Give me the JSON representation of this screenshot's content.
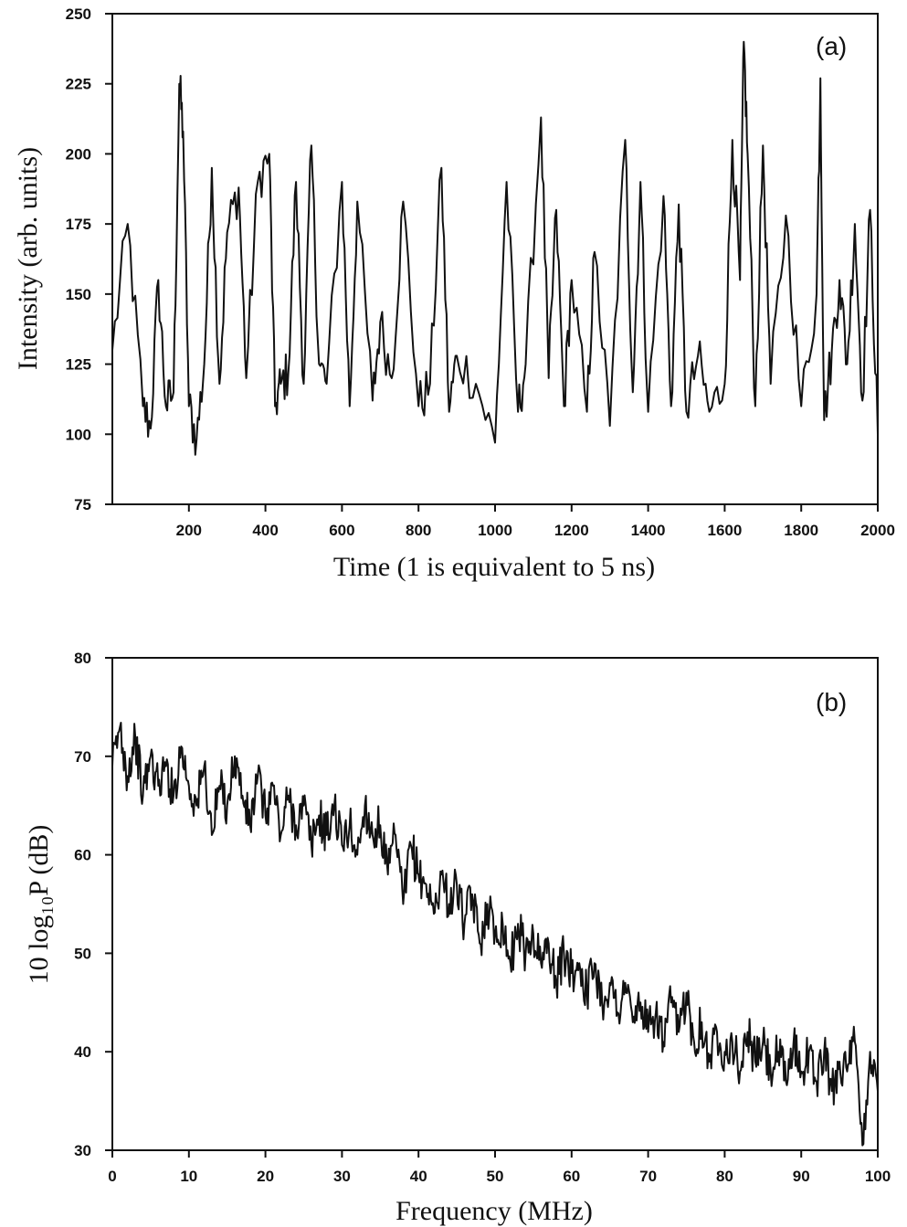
{
  "chart_data": [
    {
      "type": "line",
      "panel_label": "(a)",
      "title": "",
      "xlabel": "Time (1 is equivalent to 5 ns)",
      "ylabel": "Intensity (arb. units)",
      "xlim": [
        0,
        2000
      ],
      "ylim": [
        75,
        250
      ],
      "x_ticks": [
        "200",
        "400",
        "600",
        "800",
        "1000",
        "1200",
        "1400",
        "1600",
        "1800",
        "2000"
      ],
      "y_ticks": [
        "250",
        "225",
        "200",
        "175",
        "150",
        "125",
        "100",
        "75"
      ],
      "grid": false,
      "series": [
        {
          "x": [
            0,
            40,
            80,
            100,
            120,
            140,
            160,
            175,
            185,
            200,
            220,
            240,
            260,
            280,
            300,
            330,
            350,
            380,
            410,
            425,
            440,
            460,
            480,
            500,
            520,
            540,
            560,
            600,
            620,
            640,
            680,
            700,
            730,
            760,
            800,
            830,
            860,
            880,
            900,
            950,
            1000,
            1030,
            1060,
            1080,
            1120,
            1140,
            1160,
            1180,
            1200,
            1240,
            1260,
            1300,
            1340,
            1360,
            1380,
            1400,
            1440,
            1460,
            1480,
            1500,
            1530,
            1560,
            1600,
            1620,
            1640,
            1650,
            1660,
            1680,
            1700,
            1720,
            1760,
            1800,
            1840,
            1850,
            1860,
            1880,
            1900,
            1920,
            1940,
            1960,
            1980,
            2000
          ],
          "y": [
            130,
            175,
            110,
            102,
            155,
            110,
            115,
            225,
            208,
            110,
            98,
            125,
            195,
            118,
            172,
            188,
            120,
            190,
            200,
            110,
            118,
            122,
            190,
            118,
            203,
            125,
            118,
            190,
            110,
            183,
            112,
            140,
            120,
            183,
            110,
            118,
            195,
            108,
            128,
            118,
            97,
            190,
            108,
            125,
            213,
            120,
            180,
            110,
            155,
            108,
            165,
            103,
            205,
            115,
            190,
            108,
            185,
            110,
            182,
            108,
            128,
            108,
            118,
            205,
            155,
            240,
            200,
            110,
            203,
            118,
            178,
            110,
            150,
            227,
            105,
            130,
            155,
            125,
            175,
            112,
            180,
            100
          ]
        }
      ]
    },
    {
      "type": "line",
      "panel_label": "(b)",
      "title": "",
      "xlabel": "Frequency (MHz)",
      "ylabel": "10 log₁₀P (dB)",
      "xlim": [
        0,
        100
      ],
      "ylim": [
        30,
        80
      ],
      "x_ticks": [
        "0",
        "10",
        "20",
        "30",
        "40",
        "50",
        "60",
        "70",
        "80",
        "90",
        "100"
      ],
      "y_ticks": [
        "80",
        "70",
        "60",
        "50",
        "40",
        "30"
      ],
      "grid": false,
      "series": [
        {
          "x": [
            0,
            1,
            2,
            3,
            4,
            5,
            6,
            7,
            8,
            9,
            10,
            11,
            12,
            13,
            14,
            15,
            16,
            17,
            18,
            19,
            20,
            21,
            22,
            23,
            24,
            25,
            26,
            27,
            28,
            29,
            30,
            31,
            32,
            33,
            34,
            35,
            36,
            37,
            38,
            39,
            40,
            41,
            42,
            43,
            44,
            45,
            46,
            47,
            48,
            49,
            50,
            51,
            52,
            53,
            54,
            55,
            56,
            57,
            58,
            59,
            60,
            61,
            62,
            63,
            64,
            65,
            66,
            67,
            68,
            69,
            70,
            71,
            72,
            73,
            74,
            75,
            76,
            77,
            78,
            79,
            80,
            81,
            82,
            83,
            84,
            85,
            86,
            87,
            88,
            89,
            90,
            91,
            92,
            93,
            94,
            95,
            96,
            97,
            98,
            99,
            100
          ],
          "y": [
            69,
            73,
            68,
            72,
            66,
            70,
            67,
            69,
            66,
            71,
            67,
            65,
            69,
            62,
            67,
            65,
            70,
            66,
            63,
            68,
            64,
            67,
            62,
            66,
            63,
            65,
            61,
            64,
            62,
            65,
            61,
            63,
            60,
            65,
            62,
            63,
            58,
            62,
            55,
            61,
            58,
            57,
            54,
            58,
            55,
            57,
            53,
            56,
            51,
            55,
            52,
            53,
            49,
            53,
            50,
            52,
            49,
            51,
            47,
            50,
            48,
            49,
            46,
            49,
            45,
            47,
            44,
            47,
            43,
            45,
            42,
            44,
            41,
            45,
            42,
            46,
            41,
            43,
            39,
            42,
            40,
            41,
            38,
            42,
            39,
            41,
            38,
            40,
            37,
            41,
            38,
            40,
            37,
            40,
            36,
            39,
            38,
            41,
            30,
            40,
            36
          ]
        }
      ]
    }
  ]
}
